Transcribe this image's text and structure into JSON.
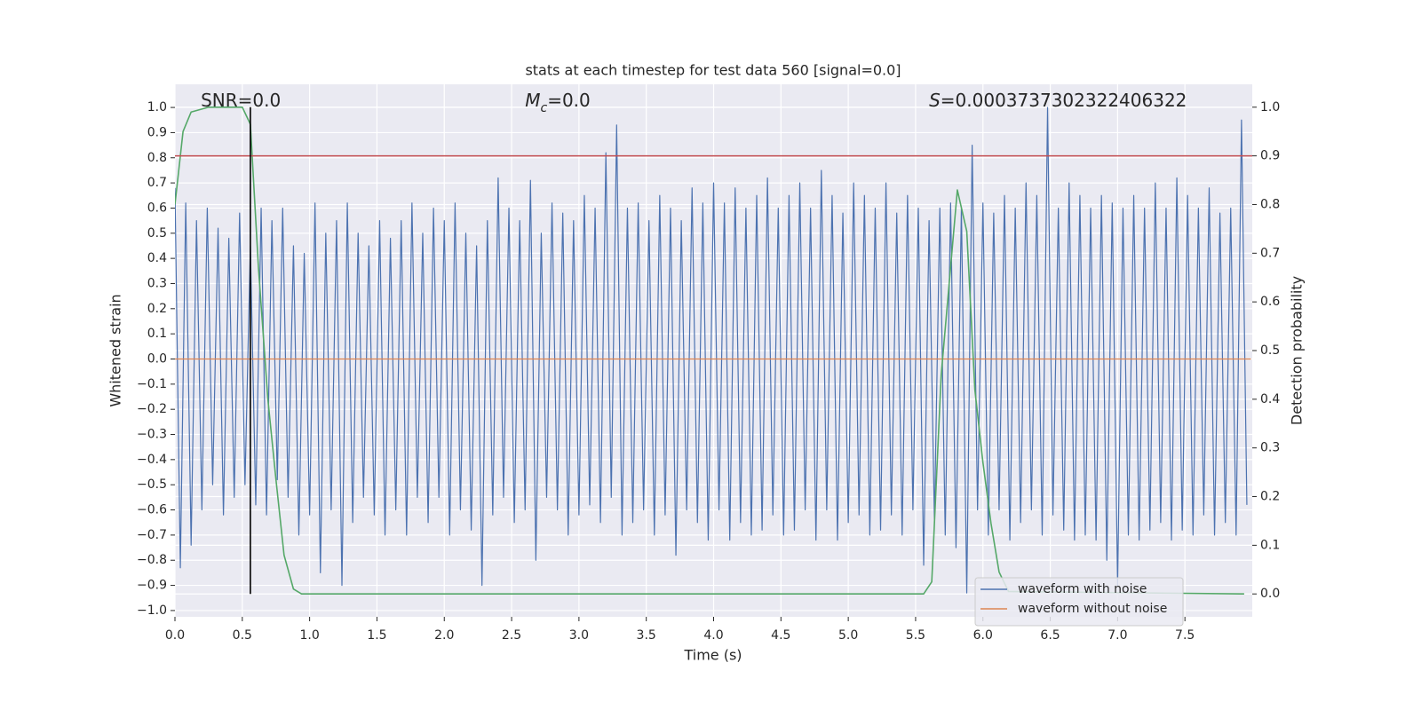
{
  "chart_data": {
    "type": "line",
    "title": "stats at each timestep for test data 560 [signal=0.0]",
    "xlabel": "Time (s)",
    "ylabel": "Whitened strain",
    "y2label": "Detection probability",
    "annotations": [
      {
        "text": "SNR=0.0"
      },
      {
        "symbol": "M",
        "subscript": "c",
        "text": "=0.0"
      },
      {
        "symbol": "S",
        "text": "=0.0003737302322406322"
      }
    ],
    "xlim": [
      0,
      8.0
    ],
    "ylim": [
      -1.025,
      1.092
    ],
    "y2lim": [
      -0.047,
      1.047
    ],
    "xticks": [
      {
        "value": 0,
        "label": "0.0"
      },
      {
        "value": 0.5,
        "label": "0.5"
      },
      {
        "value": 1,
        "label": "1.0"
      },
      {
        "value": 1.5,
        "label": "1.5"
      },
      {
        "value": 2,
        "label": "2.0"
      },
      {
        "value": 2.5,
        "label": "2.5"
      },
      {
        "value": 3,
        "label": "3.0"
      },
      {
        "value": 3.5,
        "label": "3.5"
      },
      {
        "value": 4,
        "label": "4.0"
      },
      {
        "value": 4.5,
        "label": "4.5"
      },
      {
        "value": 5,
        "label": "5.0"
      },
      {
        "value": 5.5,
        "label": "5.5"
      },
      {
        "value": 6,
        "label": "6.0"
      },
      {
        "value": 6.5,
        "label": "6.5"
      },
      {
        "value": 7,
        "label": "7.0"
      },
      {
        "value": 7.5,
        "label": "7.5"
      }
    ],
    "yticks": [
      {
        "value": -1,
        "label": "−1.0"
      },
      {
        "value": -0.9,
        "label": "−0.9"
      },
      {
        "value": -0.8,
        "label": "−0.8"
      },
      {
        "value": -0.7,
        "label": "−0.7"
      },
      {
        "value": -0.6,
        "label": "−0.6"
      },
      {
        "value": -0.5,
        "label": "−0.5"
      },
      {
        "value": -0.4,
        "label": "−0.4"
      },
      {
        "value": -0.3,
        "label": "−0.3"
      },
      {
        "value": -0.2,
        "label": "−0.2"
      },
      {
        "value": -0.1,
        "label": "−0.1"
      },
      {
        "value": 0,
        "label": "0.0"
      },
      {
        "value": 0.1,
        "label": "0.1"
      },
      {
        "value": 0.2,
        "label": "0.2"
      },
      {
        "value": 0.3,
        "label": "0.3"
      },
      {
        "value": 0.4,
        "label": "0.4"
      },
      {
        "value": 0.5,
        "label": "0.5"
      },
      {
        "value": 0.6,
        "label": "0.6"
      },
      {
        "value": 0.7,
        "label": "0.7"
      },
      {
        "value": 0.8,
        "label": "0.8"
      },
      {
        "value": 0.9,
        "label": "0.9"
      },
      {
        "value": 1,
        "label": "1.0"
      }
    ],
    "y2ticks": [
      {
        "value": 0,
        "label": "0.0"
      },
      {
        "value": 0.1,
        "label": "0.1"
      },
      {
        "value": 0.2,
        "label": "0.2"
      },
      {
        "value": 0.3,
        "label": "0.3"
      },
      {
        "value": 0.4,
        "label": "0.4"
      },
      {
        "value": 0.5,
        "label": "0.5"
      },
      {
        "value": 0.6,
        "label": "0.6"
      },
      {
        "value": 0.7,
        "label": "0.7"
      },
      {
        "value": 0.8,
        "label": "0.8"
      },
      {
        "value": 0.9,
        "label": "0.9"
      },
      {
        "value": 1,
        "label": "1.0"
      }
    ],
    "grid": true,
    "legend": "lower right",
    "threshold": 0.9,
    "threshold_color": "#c44e52",
    "detection_time": 0.56,
    "detection_color": "#000000",
    "series": [
      {
        "name": "waveform with noise",
        "color": "#4c72b0",
        "x": [
          0,
          0.04,
          0.08,
          0.12,
          0.16,
          0.2,
          0.24,
          0.28,
          0.32,
          0.36,
          0.4,
          0.44,
          0.48,
          0.52,
          0.56,
          0.6,
          0.64,
          0.68,
          0.72,
          0.76,
          0.8,
          0.84,
          0.88,
          0.92,
          0.96,
          1.0,
          1.04,
          1.08,
          1.12,
          1.16,
          1.2,
          1.24,
          1.28,
          1.32,
          1.36,
          1.4,
          1.44,
          1.48,
          1.52,
          1.56,
          1.6,
          1.64,
          1.68,
          1.72,
          1.76,
          1.8,
          1.84,
          1.88,
          1.92,
          1.96,
          2.0,
          2.04,
          2.08,
          2.12,
          2.16,
          2.2,
          2.24,
          2.28,
          2.32,
          2.36,
          2.4,
          2.44,
          2.48,
          2.52,
          2.56,
          2.6,
          2.64,
          2.68,
          2.72,
          2.76,
          2.8,
          2.84,
          2.88,
          2.92,
          2.96,
          3.0,
          3.04,
          3.08,
          3.12,
          3.16,
          3.2,
          3.24,
          3.28,
          3.32,
          3.36,
          3.4,
          3.44,
          3.48,
          3.52,
          3.56,
          3.6,
          3.64,
          3.68,
          3.72,
          3.76,
          3.8,
          3.84,
          3.88,
          3.92,
          3.96,
          4.0,
          4.04,
          4.08,
          4.12,
          4.16,
          4.2,
          4.24,
          4.28,
          4.32,
          4.36,
          4.4,
          4.44,
          4.48,
          4.52,
          4.56,
          4.6,
          4.64,
          4.68,
          4.72,
          4.76,
          4.8,
          4.84,
          4.88,
          4.92,
          4.96,
          5.0,
          5.04,
          5.08,
          5.12,
          5.16,
          5.2,
          5.24,
          5.28,
          5.32,
          5.36,
          5.4,
          5.44,
          5.48,
          5.52,
          5.56,
          5.6,
          5.64,
          5.68,
          5.72,
          5.76,
          5.8,
          5.84,
          5.88,
          5.92,
          5.96,
          6.0,
          6.04,
          6.08,
          6.12,
          6.16,
          6.2,
          6.24,
          6.28,
          6.32,
          6.36,
          6.4,
          6.44,
          6.48,
          6.52,
          6.56,
          6.6,
          6.64,
          6.68,
          6.72,
          6.76,
          6.8,
          6.84,
          6.88,
          6.92,
          6.96,
          7.0,
          7.04,
          7.08,
          7.12,
          7.16,
          7.2,
          7.24,
          7.28,
          7.32,
          7.36,
          7.4,
          7.44,
          7.48,
          7.52,
          7.56,
          7.6,
          7.64,
          7.68,
          7.72,
          7.76,
          7.8,
          7.84,
          7.88,
          7.92,
          7.96
        ],
        "values": [
          0.68,
          -0.83,
          0.62,
          -0.74,
          0.55,
          -0.6,
          0.6,
          -0.5,
          0.52,
          -0.62,
          0.48,
          -0.55,
          0.58,
          -0.5,
          0.45,
          -0.58,
          0.6,
          -0.62,
          0.55,
          -0.48,
          0.6,
          -0.55,
          0.45,
          -0.7,
          0.42,
          -0.62,
          0.62,
          -0.85,
          0.5,
          -0.6,
          0.55,
          -0.9,
          0.62,
          -0.65,
          0.5,
          -0.55,
          0.45,
          -0.62,
          0.55,
          -0.7,
          0.48,
          -0.6,
          0.55,
          -0.7,
          0.62,
          -0.55,
          0.5,
          -0.65,
          0.6,
          -0.55,
          0.55,
          -0.7,
          0.62,
          -0.6,
          0.5,
          -0.68,
          0.45,
          -0.9,
          0.55,
          -0.62,
          0.72,
          -0.55,
          0.6,
          -0.65,
          0.55,
          -0.6,
          0.71,
          -0.8,
          0.5,
          -0.55,
          0.62,
          -0.6,
          0.58,
          -0.7,
          0.55,
          -0.62,
          0.65,
          -0.58,
          0.6,
          -0.65,
          0.82,
          -0.55,
          0.93,
          -0.7,
          0.6,
          -0.65,
          0.62,
          -0.6,
          0.55,
          -0.7,
          0.65,
          -0.62,
          0.6,
          -0.78,
          0.55,
          -0.6,
          0.68,
          -0.65,
          0.62,
          -0.72,
          0.7,
          -0.6,
          0.62,
          -0.72,
          0.68,
          -0.65,
          0.6,
          -0.7,
          0.65,
          -0.68,
          0.72,
          -0.62,
          0.6,
          -0.7,
          0.65,
          -0.68,
          0.7,
          -0.6,
          0.6,
          -0.72,
          0.75,
          -0.6,
          0.65,
          -0.72,
          0.58,
          -0.65,
          0.7,
          -0.62,
          0.65,
          -0.7,
          0.6,
          -0.68,
          0.7,
          -0.62,
          0.58,
          -0.7,
          0.65,
          -0.6,
          0.6,
          -0.82,
          0.55,
          -0.65,
          0.6,
          -0.7,
          0.62,
          -0.75,
          0.6,
          -0.93,
          0.85,
          -0.6,
          0.62,
          -0.7,
          0.58,
          -0.6,
          0.65,
          -0.72,
          0.6,
          -0.65,
          0.7,
          -0.6,
          0.65,
          -0.7,
          1.0,
          -0.62,
          0.6,
          -0.68,
          0.7,
          -0.72,
          0.65,
          -0.7,
          0.6,
          -0.72,
          0.65,
          -0.8,
          0.62,
          -0.9,
          0.6,
          -0.7,
          0.65,
          -0.72,
          0.6,
          -0.68,
          0.7,
          -0.65,
          0.6,
          -0.72,
          0.72,
          -0.68,
          0.65,
          -0.7,
          0.6,
          -0.62,
          0.68,
          -0.7,
          0.58,
          -0.65,
          0.6,
          -0.7,
          0.95,
          -0.58
        ]
      },
      {
        "name": "waveform without noise",
        "color": "#dd8452",
        "x": [
          0,
          7.99
        ],
        "values": [
          0,
          0
        ]
      },
      {
        "color": "#55a868",
        "axis": "y2",
        "x": [
          0,
          0.06,
          0.12,
          0.25,
          0.5,
          0.56,
          0.62,
          0.69,
          0.75,
          0.81,
          0.88,
          0.94,
          5.56,
          5.62,
          5.69,
          5.81,
          5.88,
          5.94,
          6.0,
          6.06,
          6.12,
          6.19,
          7.94
        ],
        "values": [
          0.8,
          0.95,
          0.99,
          1.0,
          1.0,
          0.965,
          0.67,
          0.4,
          0.235,
          0.08,
          0.01,
          0,
          0,
          0.025,
          0.45,
          0.83,
          0.745,
          0.42,
          0.27,
          0.145,
          0.045,
          0.005,
          0
        ]
      }
    ]
  }
}
